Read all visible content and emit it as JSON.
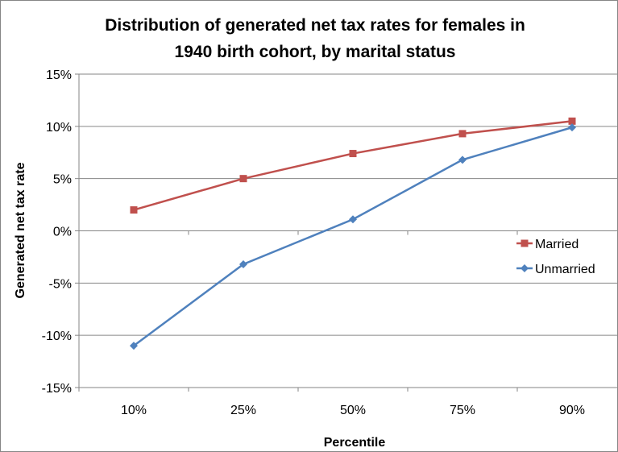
{
  "chart_data": {
    "type": "line",
    "title_lines": [
      "Distribution of generated net tax rates for females in",
      "1940 birth cohort, by marital status"
    ],
    "xlabel": "Percentile",
    "ylabel": "Generated net tax rate",
    "categories": [
      "10%",
      "25%",
      "50%",
      "75%",
      "90%"
    ],
    "y_ticks": [
      15,
      10,
      5,
      0,
      -5,
      -10,
      -15
    ],
    "y_tick_labels": [
      "15%",
      "10%",
      "5%",
      "0%",
      "-5%",
      "-10%",
      "-15%"
    ],
    "ylim": [
      -15,
      15
    ],
    "grid": "horizontal",
    "legend_position": "right",
    "series": [
      {
        "name": "Married",
        "values": [
          2.0,
          5.0,
          7.4,
          9.3,
          10.5
        ],
        "color": "#c0504d",
        "marker": "square"
      },
      {
        "name": "Unmarried",
        "values": [
          -11.0,
          -3.2,
          1.1,
          6.8,
          9.9
        ],
        "color": "#4f81bd",
        "marker": "diamond"
      }
    ]
  }
}
